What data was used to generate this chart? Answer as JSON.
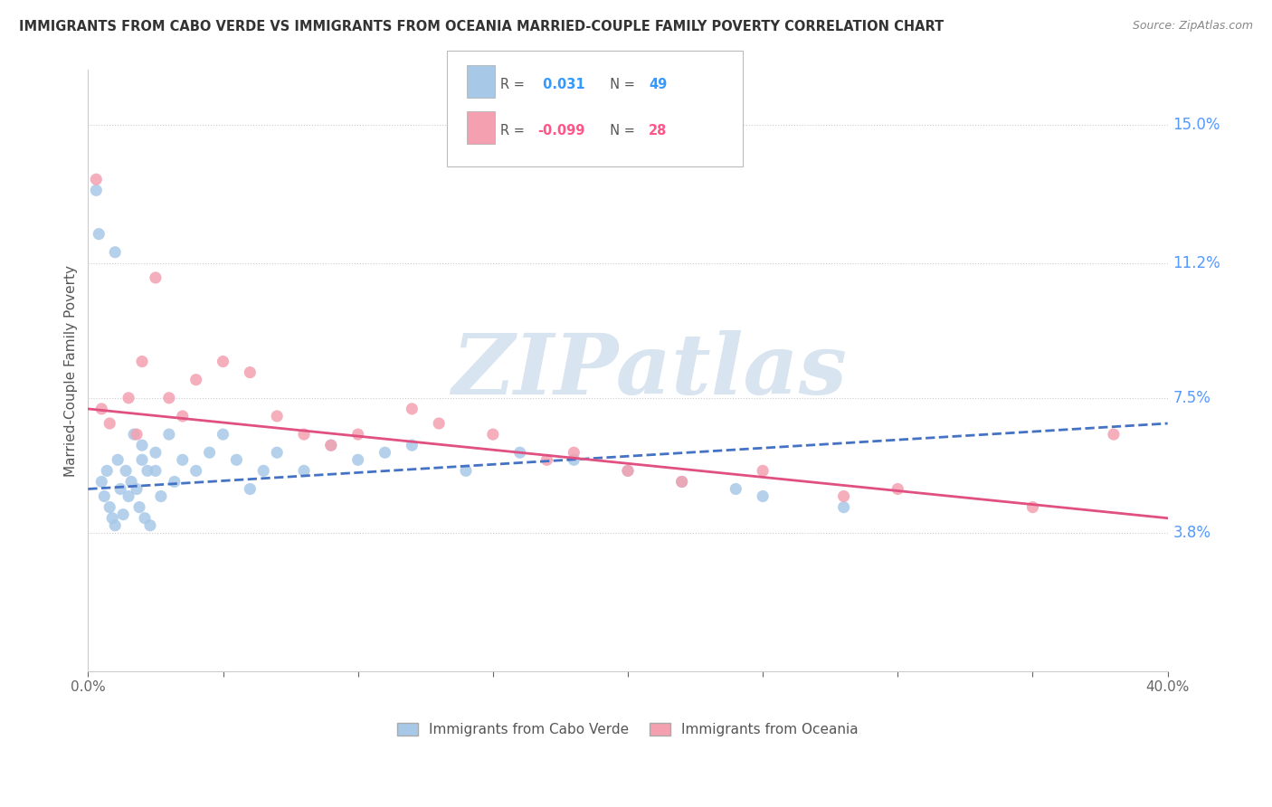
{
  "title": "IMMIGRANTS FROM CABO VERDE VS IMMIGRANTS FROM OCEANIA MARRIED-COUPLE FAMILY POVERTY CORRELATION CHART",
  "source": "Source: ZipAtlas.com",
  "ylabel": "Married-Couple Family Poverty",
  "xlim": [
    0.0,
    40.0
  ],
  "ylim": [
    0.0,
    16.5
  ],
  "ytick_labels": [
    "3.8%",
    "7.5%",
    "11.2%",
    "15.0%"
  ],
  "ytick_values": [
    3.8,
    7.5,
    11.2,
    15.0
  ],
  "xtick_values": [
    0.0,
    5.0,
    10.0,
    15.0,
    20.0,
    25.0,
    30.0,
    35.0,
    40.0
  ],
  "xtick_labels": [
    "0.0%",
    "",
    "",
    "",
    "",
    "",
    "",
    "",
    "40.0%"
  ],
  "series1_label": "Immigrants from Cabo Verde",
  "series2_label": "Immigrants from Oceania",
  "series1_R": 0.031,
  "series1_N": 49,
  "series2_R": -0.099,
  "series2_N": 28,
  "series1_color": "#a8c8e8",
  "series2_color": "#f4a0b0",
  "trend1_color": "#4472c4",
  "trend2_color": "#e05080",
  "watermark_text": "ZIPatlas",
  "watermark_color": "#d8e4f0",
  "cabo_verde_x": [
    0.5,
    0.6,
    0.7,
    0.8,
    0.9,
    1.0,
    1.1,
    1.2,
    1.3,
    1.4,
    1.5,
    1.6,
    1.7,
    1.8,
    1.9,
    2.0,
    2.0,
    2.1,
    2.2,
    2.3,
    2.5,
    2.5,
    2.7,
    3.0,
    3.2,
    3.5,
    4.0,
    4.5,
    5.0,
    5.5,
    6.0,
    6.5,
    7.0,
    8.0,
    9.0,
    10.0,
    11.0,
    12.0,
    14.0,
    16.0,
    18.0,
    20.0,
    22.0,
    24.0,
    25.0,
    28.0,
    0.3,
    0.4,
    1.0
  ],
  "cabo_verde_y": [
    5.2,
    4.8,
    5.5,
    4.5,
    4.2,
    4.0,
    5.8,
    5.0,
    4.3,
    5.5,
    4.8,
    5.2,
    6.5,
    5.0,
    4.5,
    6.2,
    5.8,
    4.2,
    5.5,
    4.0,
    6.0,
    5.5,
    4.8,
    6.5,
    5.2,
    5.8,
    5.5,
    6.0,
    6.5,
    5.8,
    5.0,
    5.5,
    6.0,
    5.5,
    6.2,
    5.8,
    6.0,
    6.2,
    5.5,
    6.0,
    5.8,
    5.5,
    5.2,
    5.0,
    4.8,
    4.5,
    13.2,
    12.0,
    11.5
  ],
  "oceania_x": [
    0.5,
    0.8,
    1.5,
    1.8,
    2.0,
    2.5,
    3.0,
    3.5,
    4.0,
    5.0,
    6.0,
    7.0,
    8.0,
    9.0,
    10.0,
    12.0,
    13.0,
    15.0,
    17.0,
    18.0,
    20.0,
    22.0,
    25.0,
    28.0,
    30.0,
    35.0,
    38.0,
    0.3
  ],
  "oceania_y": [
    7.2,
    6.8,
    7.5,
    6.5,
    8.5,
    10.8,
    7.5,
    7.0,
    8.0,
    8.5,
    8.2,
    7.0,
    6.5,
    6.2,
    6.5,
    7.2,
    6.8,
    6.5,
    5.8,
    6.0,
    5.5,
    5.2,
    5.5,
    4.8,
    5.0,
    4.5,
    6.5,
    13.5
  ],
  "trend1_x_start": 0.0,
  "trend1_x_end": 40.0,
  "trend1_y_start": 5.0,
  "trend1_y_end": 6.8,
  "trend1_style": "dashed",
  "trend2_x_start": 0.0,
  "trend2_x_end": 40.0,
  "trend2_y_start": 7.2,
  "trend2_y_end": 4.2,
  "trend2_style": "solid"
}
